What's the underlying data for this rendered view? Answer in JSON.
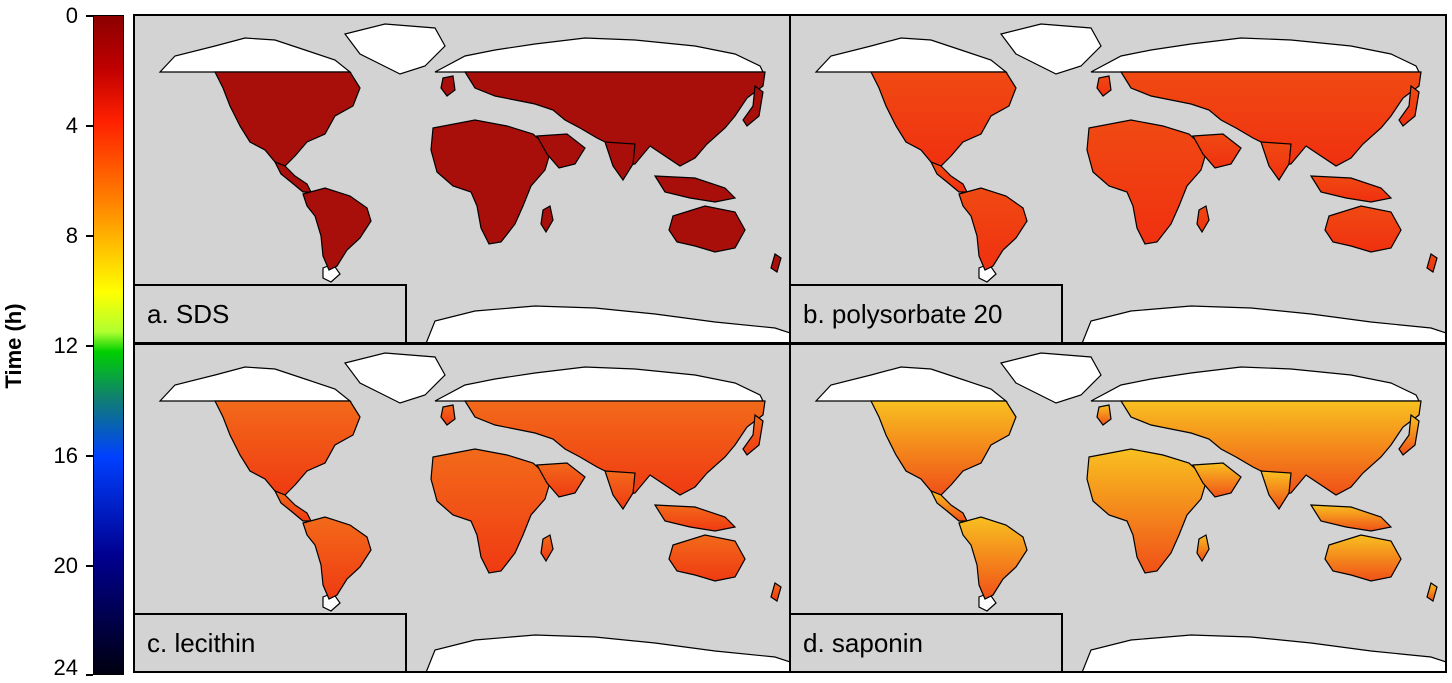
{
  "colorbar": {
    "title": "Time (h)",
    "ticks": [
      "0",
      "4",
      "8",
      "12",
      "16",
      "20",
      "24"
    ]
  },
  "panels": [
    {
      "label": "a. SDS",
      "fill": "#a80f0a",
      "fill2": "#a80f0a"
    },
    {
      "label": "b. polysorbate 20",
      "fill": "#f03010",
      "fill2": "#f04a12"
    },
    {
      "label": "c. lecithin",
      "fill": "#f03a12",
      "fill2": "#f26a1a"
    },
    {
      "label": "d. saponin",
      "fill": "#f05018",
      "fill2": "#f8c020"
    }
  ],
  "colors": {
    "ocean": "#d3d3d3",
    "ice": "#ffffff"
  }
}
